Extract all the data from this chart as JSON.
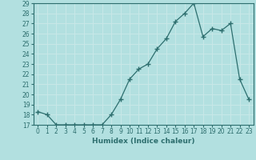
{
  "x": [
    0,
    1,
    2,
    3,
    4,
    5,
    6,
    7,
    8,
    9,
    10,
    11,
    12,
    13,
    14,
    15,
    16,
    17,
    18,
    19,
    20,
    21,
    22,
    23
  ],
  "y": [
    18.3,
    18.0,
    17.0,
    17.0,
    17.0,
    17.0,
    17.0,
    17.0,
    18.0,
    19.5,
    21.5,
    22.5,
    23.0,
    24.5,
    25.5,
    27.2,
    28.0,
    29.0,
    25.7,
    26.5,
    26.3,
    27.0,
    21.5,
    19.5
  ],
  "xlabel": "Humidex (Indice chaleur)",
  "ylim": [
    17,
    29
  ],
  "xlim": [
    -0.5,
    23.5
  ],
  "yticks": [
    17,
    18,
    19,
    20,
    21,
    22,
    23,
    24,
    25,
    26,
    27,
    28,
    29
  ],
  "xticks": [
    0,
    1,
    2,
    3,
    4,
    5,
    6,
    7,
    8,
    9,
    10,
    11,
    12,
    13,
    14,
    15,
    16,
    17,
    18,
    19,
    20,
    21,
    22,
    23
  ],
  "line_color": "#2d6e6e",
  "marker": "+",
  "bg_color": "#b2e0e0",
  "grid_color": "#c8e8e8",
  "spine_color": "#2d6e6e",
  "tick_color": "#2d6e6e",
  "label_color": "#2d6e6e",
  "tick_fontsize": 5.5,
  "xlabel_fontsize": 6.5
}
